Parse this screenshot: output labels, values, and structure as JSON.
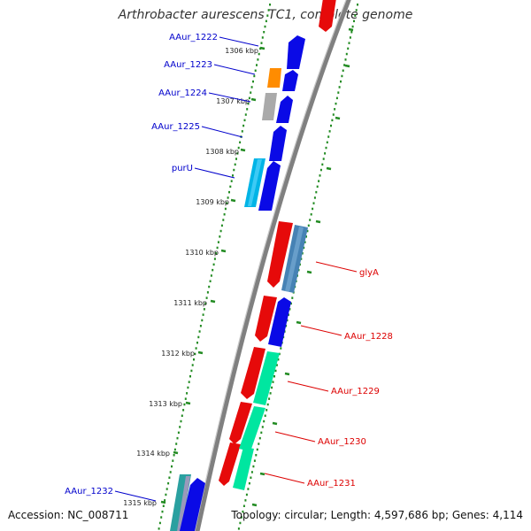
{
  "title": "Arthrobacter aurescens TC1, complete genome",
  "footer": {
    "accession": "Accession: NC_008711",
    "summary": "Topology: circular; Length: 4,597,686 bp; Genes: 4,114"
  },
  "ticks": [
    "1306 kbp",
    "1307 kbp",
    "1308 kbp",
    "1309 kbp",
    "1310 kbp",
    "1311 kbp",
    "1312 kbp",
    "1313 kbp",
    "1314 kbp",
    "1315 kbp"
  ],
  "genes_left": [
    "AAur_1222",
    "AAur_1223",
    "AAur_1224",
    "AAur_1225",
    "purU",
    "AAur_1232"
  ],
  "genes_right": [
    "glyA",
    "AAur_1228",
    "AAur_1229",
    "AAur_1230",
    "AAur_1231"
  ],
  "colors": {
    "forward": "#0a0ae6",
    "reverse": "#e60a0a",
    "left_label": "#0000cc",
    "right_label": "#dd0000",
    "orange": "#ff8c00",
    "gray": "#aaaaaa",
    "cyan": "#00b4e6",
    "steelblue": "#4682b4",
    "springgreen": "#00e6a0",
    "backbone": "#808080",
    "tick": "#228b22"
  }
}
